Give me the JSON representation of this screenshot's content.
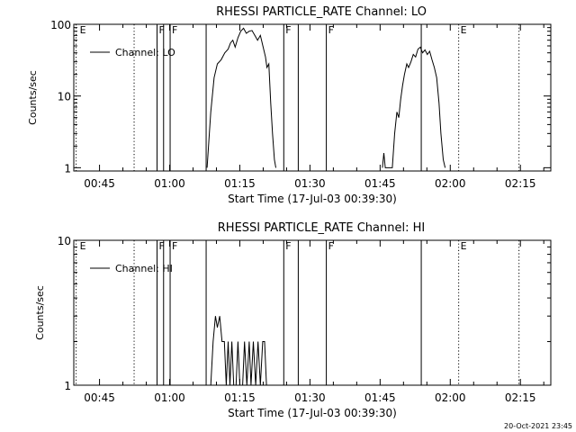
{
  "footer_timestamp": "20-Oct-2021 23:45",
  "chart_data": [
    {
      "type": "line",
      "title": "RHESSI PARTICLE_RATE Channel: LO",
      "xlabel": "Start Time (17-Jul-03 00:39:30)",
      "ylabel": "Counts/sec",
      "yscale": "log",
      "xlim_minutes": [
        39.5,
        141.5
      ],
      "ylim": [
        0.9,
        100
      ],
      "x_ticks": [
        {
          "label": "00:45",
          "minute": 45
        },
        {
          "label": "01:00",
          "minute": 60
        },
        {
          "label": "01:15",
          "minute": 75
        },
        {
          "label": "01:30",
          "minute": 90
        },
        {
          "label": "01:45",
          "minute": 105
        },
        {
          "label": "02:00",
          "minute": 120
        },
        {
          "label": "02:15",
          "minute": 135
        }
      ],
      "y_ticks": [
        {
          "label": "1",
          "value": 1
        },
        {
          "label": "10",
          "value": 10
        },
        {
          "label": "100",
          "value": 100
        }
      ],
      "legend": {
        "entry": "Channel: LO",
        "placement": "top-left"
      },
      "event_markers": [
        {
          "minute": 40.0,
          "label": "E",
          "style": "dotted"
        },
        {
          "minute": 52.4,
          "style": "dotted"
        },
        {
          "minute": 57.3,
          "label": "F",
          "style": "solid"
        },
        {
          "minute": 58.7,
          "style": "solid"
        },
        {
          "minute": 60.1,
          "label": "F",
          "style": "solid"
        },
        {
          "minute": 67.8,
          "style": "solid"
        },
        {
          "minute": 84.4,
          "label": "F",
          "style": "solid"
        },
        {
          "minute": 87.5,
          "style": "solid"
        },
        {
          "minute": 93.5,
          "label": "F",
          "style": "solid"
        },
        {
          "minute": 113.8,
          "style": "solid"
        },
        {
          "minute": 121.8,
          "label": "E",
          "style": "dotted"
        },
        {
          "minute": 134.7,
          "style": "dotted"
        }
      ],
      "series": [
        {
          "name": "Channel: LO",
          "segments": [
            [
              [
                68,
                1
              ],
              [
                68.8,
                6
              ],
              [
                69.5,
                18
              ],
              [
                70.2,
                28
              ],
              [
                71,
                32
              ],
              [
                71.8,
                40
              ],
              [
                72.5,
                45
              ],
              [
                73,
                55
              ],
              [
                73.5,
                60
              ],
              [
                74,
                48
              ],
              [
                74.6,
                65
              ],
              [
                75.2,
                80
              ],
              [
                75.8,
                88
              ],
              [
                76.4,
                75
              ],
              [
                77,
                80
              ],
              [
                77.6,
                82
              ],
              [
                78.2,
                70
              ],
              [
                78.8,
                60
              ],
              [
                79.4,
                70
              ],
              [
                80,
                48
              ],
              [
                80.5,
                35
              ],
              [
                80.8,
                25
              ],
              [
                81.2,
                28
              ],
              [
                81.6,
                8
              ],
              [
                82,
                3
              ],
              [
                82.4,
                1.3
              ],
              [
                82.7,
                1
              ]
            ],
            [
              [
                105.5,
                1
              ],
              [
                105.8,
                1.6
              ],
              [
                106.1,
                1
              ],
              [
                107.6,
                1
              ],
              [
                108.1,
                3
              ],
              [
                108.6,
                6
              ],
              [
                109,
                5
              ],
              [
                109.4,
                9
              ],
              [
                109.8,
                14
              ],
              [
                110.2,
                20
              ],
              [
                110.7,
                28
              ],
              [
                111.1,
                25
              ],
              [
                111.6,
                30
              ],
              [
                112.1,
                38
              ],
              [
                112.6,
                35
              ],
              [
                113.1,
                45
              ],
              [
                113.6,
                48
              ],
              [
                114.1,
                40
              ],
              [
                114.6,
                44
              ],
              [
                115.1,
                38
              ],
              [
                115.6,
                42
              ],
              [
                116.1,
                32
              ],
              [
                116.6,
                25
              ],
              [
                117.1,
                18
              ],
              [
                117.6,
                8
              ],
              [
                118,
                3
              ],
              [
                118.5,
                1.3
              ],
              [
                118.9,
                1
              ]
            ]
          ]
        }
      ]
    },
    {
      "type": "line",
      "title": "RHESSI PARTICLE_RATE Channel: HI",
      "xlabel": "Start Time (17-Jul-03 00:39:30)",
      "ylabel": "Counts/sec",
      "yscale": "log",
      "xlim_minutes": [
        39.5,
        141.5
      ],
      "ylim": [
        1,
        10
      ],
      "x_ticks": [
        {
          "label": "00:45",
          "minute": 45
        },
        {
          "label": "01:00",
          "minute": 60
        },
        {
          "label": "01:15",
          "minute": 75
        },
        {
          "label": "01:30",
          "minute": 90
        },
        {
          "label": "01:45",
          "minute": 105
        },
        {
          "label": "02:00",
          "minute": 120
        },
        {
          "label": "02:15",
          "minute": 135
        }
      ],
      "y_ticks": [
        {
          "label": "1",
          "value": 1
        },
        {
          "label": "10",
          "value": 10
        }
      ],
      "legend": {
        "entry": "Channel: HI",
        "placement": "top-left"
      },
      "event_markers": [
        {
          "minute": 40.0,
          "label": "E",
          "style": "dotted"
        },
        {
          "minute": 52.4,
          "style": "dotted"
        },
        {
          "minute": 57.3,
          "label": "F",
          "style": "solid"
        },
        {
          "minute": 58.7,
          "style": "solid"
        },
        {
          "minute": 60.1,
          "label": "F",
          "style": "solid"
        },
        {
          "minute": 67.8,
          "style": "solid"
        },
        {
          "minute": 84.4,
          "label": "F",
          "style": "solid"
        },
        {
          "minute": 87.5,
          "style": "solid"
        },
        {
          "minute": 93.5,
          "label": "F",
          "style": "solid"
        },
        {
          "minute": 113.8,
          "style": "solid"
        },
        {
          "minute": 121.8,
          "label": "E",
          "style": "dotted"
        },
        {
          "minute": 134.7,
          "style": "dotted"
        }
      ],
      "series": [
        {
          "name": "Channel: HI",
          "segments": [
            [
              [
                68.2,
                1
              ],
              [
                68.8,
                1
              ],
              [
                69.3,
                2
              ],
              [
                69.8,
                3
              ],
              [
                70.2,
                2.5
              ],
              [
                70.7,
                3
              ],
              [
                71.2,
                2
              ],
              [
                71.7,
                2
              ],
              [
                72.1,
                1
              ],
              [
                72.5,
                2
              ],
              [
                72.9,
                1
              ],
              [
                73.3,
                2
              ],
              [
                73.7,
                1
              ],
              [
                74.2,
                1
              ],
              [
                74.6,
                2
              ],
              [
                75,
                1
              ],
              [
                75.6,
                1
              ],
              [
                76,
                2
              ],
              [
                76.5,
                1
              ],
              [
                77,
                2
              ],
              [
                77.4,
                1
              ],
              [
                77.9,
                2
              ],
              [
                78.4,
                1
              ],
              [
                78.9,
                2
              ],
              [
                79.4,
                1
              ],
              [
                79.9,
                2
              ],
              [
                80.3,
                2
              ],
              [
                80.7,
                1
              ]
            ]
          ]
        }
      ]
    }
  ]
}
